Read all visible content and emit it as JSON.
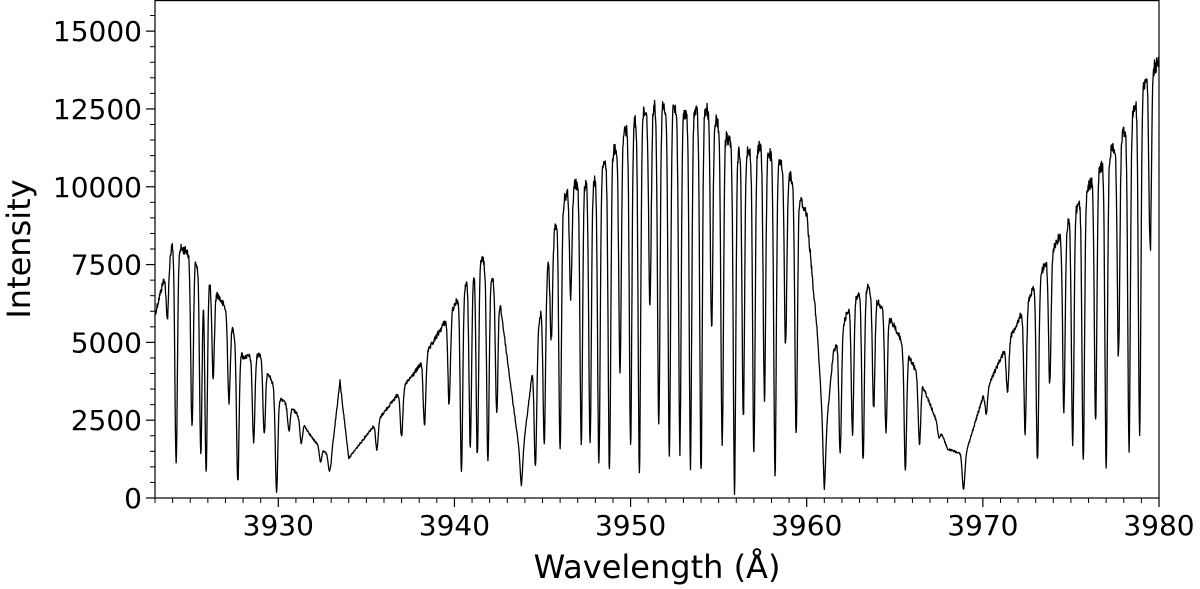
{
  "chart_data": {
    "type": "line",
    "title": "",
    "xlabel": "Wavelength (Å)",
    "ylabel": "Intensity",
    "xlim": [
      3923,
      3980
    ],
    "ylim": [
      0,
      16000
    ],
    "x_ticks": [
      3930,
      3940,
      3950,
      3960,
      3970,
      3980
    ],
    "x_tick_labels": [
      "3930",
      "3940",
      "3950",
      "3960",
      "3970",
      "3980"
    ],
    "y_ticks": [
      0,
      2500,
      5000,
      7500,
      10000,
      12500,
      15000
    ],
    "y_tick_labels": [
      "0",
      "2500",
      "5000",
      "7500",
      "10000",
      "12500",
      "15000"
    ],
    "grid": false,
    "line_color": "#000000",
    "continuum": {
      "x": [
        3923.0,
        3924.0,
        3925.0,
        3926.0,
        3927.0,
        3928.0,
        3929.0,
        3930.0,
        3931.0,
        3932.0,
        3933.0,
        3933.5,
        3934.0,
        3936.0,
        3938.0,
        3940.0,
        3941.5,
        3942.5,
        3943.3,
        3943.8,
        3944.5,
        3945.5,
        3946.5,
        3948.0,
        3950.0,
        3951.5,
        3953.0,
        3954.5,
        3956.0,
        3957.5,
        3959.0,
        3960.0,
        3960.6,
        3961.0,
        3961.5,
        3962.5,
        3963.5,
        3965.0,
        3966.5,
        3968.0,
        3969.0,
        3970.0,
        3972.0,
        3974.0,
        3976.0,
        3978.0,
        3979.5,
        3980.0
      ],
      "y": [
        6000,
        8300,
        8000,
        7200,
        6200,
        4600,
        4700,
        3300,
        2800,
        1900,
        1300,
        3800,
        1300,
        2800,
        4300,
        6300,
        7900,
        6800,
        3200,
        1100,
        4500,
        8500,
        10200,
        10400,
        12300,
        12900,
        12600,
        12700,
        11300,
        11500,
        10600,
        9300,
        5400,
        1600,
        4700,
        6400,
        6900,
        5600,
        3800,
        1600,
        1400,
        3300,
        5800,
        8200,
        10200,
        12000,
        14000,
        14200
      ]
    },
    "absorption_lines": [
      {
        "x": 3923.7,
        "y": 5900
      },
      {
        "x": 3924.2,
        "y": 1200
      },
      {
        "x": 3925.1,
        "y": 2400
      },
      {
        "x": 3925.6,
        "y": 1600
      },
      {
        "x": 3925.9,
        "y": 1000
      },
      {
        "x": 3926.3,
        "y": 4000
      },
      {
        "x": 3927.2,
        "y": 3200
      },
      {
        "x": 3927.7,
        "y": 600
      },
      {
        "x": 3928.6,
        "y": 1900
      },
      {
        "x": 3929.2,
        "y": 2100
      },
      {
        "x": 3929.9,
        "y": 300
      },
      {
        "x": 3930.6,
        "y": 2200
      },
      {
        "x": 3931.3,
        "y": 1800
      },
      {
        "x": 3932.4,
        "y": 1200
      },
      {
        "x": 3932.9,
        "y": 900
      },
      {
        "x": 3935.6,
        "y": 1600
      },
      {
        "x": 3937.0,
        "y": 2000
      },
      {
        "x": 3938.3,
        "y": 2400
      },
      {
        "x": 3939.7,
        "y": 3100
      },
      {
        "x": 3940.4,
        "y": 1000
      },
      {
        "x": 3940.9,
        "y": 1800
      },
      {
        "x": 3941.3,
        "y": 1500
      },
      {
        "x": 3941.9,
        "y": 1300
      },
      {
        "x": 3942.4,
        "y": 2800
      },
      {
        "x": 3943.8,
        "y": 400
      },
      {
        "x": 3944.6,
        "y": 1100
      },
      {
        "x": 3945.1,
        "y": 1900
      },
      {
        "x": 3945.5,
        "y": 5300
      },
      {
        "x": 3946.0,
        "y": 1600
      },
      {
        "x": 3946.6,
        "y": 6600
      },
      {
        "x": 3947.2,
        "y": 1900
      },
      {
        "x": 3947.7,
        "y": 1800
      },
      {
        "x": 3948.2,
        "y": 1200
      },
      {
        "x": 3948.8,
        "y": 1000
      },
      {
        "x": 3949.4,
        "y": 4200
      },
      {
        "x": 3950.0,
        "y": 1900
      },
      {
        "x": 3950.5,
        "y": 1100
      },
      {
        "x": 3951.1,
        "y": 6400
      },
      {
        "x": 3951.6,
        "y": 2500
      },
      {
        "x": 3952.2,
        "y": 1600
      },
      {
        "x": 3952.8,
        "y": 1800
      },
      {
        "x": 3953.4,
        "y": 1300
      },
      {
        "x": 3954.0,
        "y": 1000
      },
      {
        "x": 3954.6,
        "y": 5600
      },
      {
        "x": 3955.2,
        "y": 1800
      },
      {
        "x": 3955.9,
        "y": 500
      },
      {
        "x": 3956.4,
        "y": 2700
      },
      {
        "x": 3957.0,
        "y": 1600
      },
      {
        "x": 3957.6,
        "y": 3400
      },
      {
        "x": 3958.2,
        "y": 900
      },
      {
        "x": 3958.8,
        "y": 5100
      },
      {
        "x": 3959.4,
        "y": 2200
      },
      {
        "x": 3961.0,
        "y": 300
      },
      {
        "x": 3961.9,
        "y": 1500
      },
      {
        "x": 3962.6,
        "y": 2200
      },
      {
        "x": 3963.2,
        "y": 1300
      },
      {
        "x": 3963.8,
        "y": 3000
      },
      {
        "x": 3964.5,
        "y": 2200
      },
      {
        "x": 3965.6,
        "y": 1000
      },
      {
        "x": 3966.4,
        "y": 1800
      },
      {
        "x": 3967.5,
        "y": 2000
      },
      {
        "x": 3968.4,
        "y": 1800
      },
      {
        "x": 3968.9,
        "y": 300
      },
      {
        "x": 3970.2,
        "y": 2800
      },
      {
        "x": 3971.4,
        "y": 3500
      },
      {
        "x": 3972.4,
        "y": 2200
      },
      {
        "x": 3973.1,
        "y": 1300
      },
      {
        "x": 3973.8,
        "y": 3800
      },
      {
        "x": 3974.6,
        "y": 3000
      },
      {
        "x": 3975.1,
        "y": 1900
      },
      {
        "x": 3975.7,
        "y": 1400
      },
      {
        "x": 3976.4,
        "y": 2600
      },
      {
        "x": 3977.0,
        "y": 1300
      },
      {
        "x": 3977.7,
        "y": 4700
      },
      {
        "x": 3978.3,
        "y": 1800
      },
      {
        "x": 3978.9,
        "y": 2300
      },
      {
        "x": 3979.5,
        "y": 8200
      }
    ]
  }
}
